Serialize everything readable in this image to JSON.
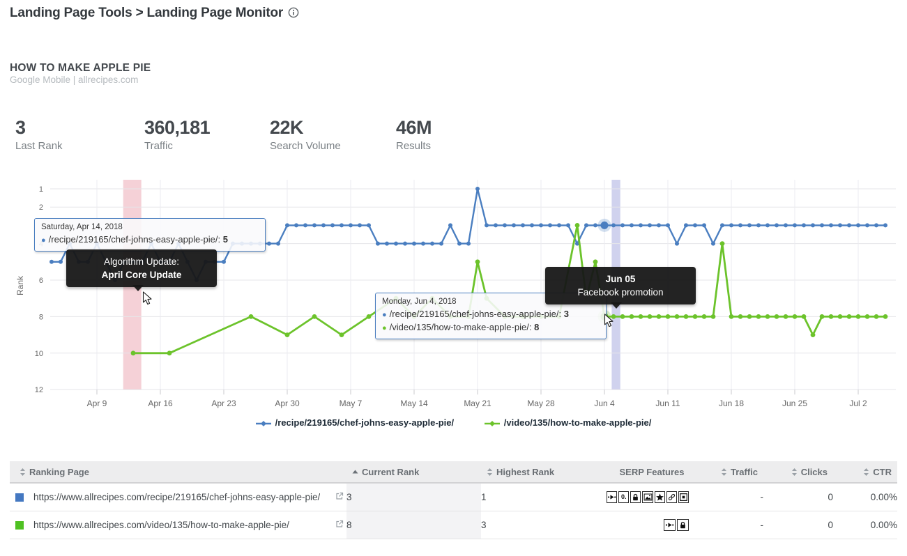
{
  "header": {
    "breadcrumb": "Landing Page Tools > Landing Page Monitor",
    "info_icon": "info-icon"
  },
  "keyword": {
    "title": "HOW TO MAKE APPLE PIE",
    "subtitle": "Google Mobile | allrecipes.com"
  },
  "stats": [
    {
      "value": "3",
      "label": "Last Rank"
    },
    {
      "value": "360,181",
      "label": "Traffic"
    },
    {
      "value": "22K",
      "label": "Search Volume"
    },
    {
      "value": "46M",
      "label": "Results"
    }
  ],
  "colors": {
    "recipe_blue": "#4a7ec0",
    "video_green": "#6cc32b",
    "band_pink": "rgba(226,115,134,0.33)",
    "band_purple": "rgba(110,116,202,0.32)",
    "grid": "#e6e6e9",
    "axis_text": "#666666"
  },
  "chart_data": {
    "type": "line",
    "title": "",
    "xlabel": "",
    "ylabel": "Rank",
    "y_inverted": true,
    "ylim": [
      1,
      12
    ],
    "y_ticks": [
      1,
      2,
      4,
      6,
      8,
      10,
      12
    ],
    "x_start_date": "Apr 4, 2018",
    "x_ticks": [
      {
        "day": 5,
        "label": "Apr 9"
      },
      {
        "day": 12,
        "label": "Apr 16"
      },
      {
        "day": 19,
        "label": "Apr 23"
      },
      {
        "day": 26,
        "label": "Apr 30"
      },
      {
        "day": 33,
        "label": "May 7"
      },
      {
        "day": 40,
        "label": "May 14"
      },
      {
        "day": 47,
        "label": "May 21"
      },
      {
        "day": 54,
        "label": "May 28"
      },
      {
        "day": 61,
        "label": "Jun 4"
      },
      {
        "day": 68,
        "label": "Jun 11"
      },
      {
        "day": 75,
        "label": "Jun 18"
      },
      {
        "day": 82,
        "label": "Jun 25"
      },
      {
        "day": 89,
        "label": "Jul 2"
      }
    ],
    "series": [
      {
        "name": "/recipe/219165/chef-johns-easy-apple-pie/",
        "color": "#4a7ec0",
        "points": [
          [
            0,
            5
          ],
          [
            1,
            5
          ],
          [
            2,
            4
          ],
          [
            3,
            5
          ],
          [
            4,
            5
          ],
          [
            5,
            4
          ],
          [
            6,
            5
          ],
          [
            7,
            6
          ],
          [
            8,
            5
          ],
          [
            9,
            5
          ],
          [
            10,
            5
          ],
          [
            11,
            4
          ],
          [
            12,
            5
          ],
          [
            13,
            5
          ],
          [
            14,
            4
          ],
          [
            15,
            5
          ],
          [
            16,
            6
          ],
          [
            17,
            5
          ],
          [
            18,
            5
          ],
          [
            19,
            5
          ],
          [
            20,
            4
          ],
          [
            21,
            4
          ],
          [
            22,
            4
          ],
          [
            23,
            4
          ],
          [
            24,
            4
          ],
          [
            25,
            4
          ],
          [
            26,
            3
          ],
          [
            27,
            3
          ],
          [
            28,
            3
          ],
          [
            29,
            3
          ],
          [
            30,
            3
          ],
          [
            31,
            3
          ],
          [
            32,
            3
          ],
          [
            33,
            3
          ],
          [
            34,
            3
          ],
          [
            35,
            3
          ],
          [
            36,
            4
          ],
          [
            37,
            4
          ],
          [
            38,
            4
          ],
          [
            39,
            4
          ],
          [
            40,
            4
          ],
          [
            41,
            4
          ],
          [
            42,
            4
          ],
          [
            43,
            4
          ],
          [
            44,
            3
          ],
          [
            45,
            4
          ],
          [
            46,
            4
          ],
          [
            47,
            1
          ],
          [
            48,
            3
          ],
          [
            49,
            3
          ],
          [
            50,
            3
          ],
          [
            51,
            3
          ],
          [
            52,
            3
          ],
          [
            53,
            3
          ],
          [
            54,
            3
          ],
          [
            55,
            3
          ],
          [
            56,
            3
          ],
          [
            57,
            3
          ],
          [
            58,
            4
          ],
          [
            59,
            3
          ],
          [
            60,
            3
          ],
          [
            61,
            3
          ],
          [
            62,
            3
          ],
          [
            63,
            3
          ],
          [
            64,
            3
          ],
          [
            65,
            3
          ],
          [
            66,
            3
          ],
          [
            67,
            3
          ],
          [
            68,
            3
          ],
          [
            69,
            4
          ],
          [
            70,
            3
          ],
          [
            71,
            3
          ],
          [
            72,
            3
          ],
          [
            73,
            4
          ],
          [
            74,
            3
          ],
          [
            75,
            3
          ],
          [
            76,
            3
          ],
          [
            77,
            3
          ],
          [
            78,
            3
          ],
          [
            79,
            3
          ],
          [
            80,
            3
          ],
          [
            81,
            3
          ],
          [
            82,
            3
          ],
          [
            83,
            3
          ],
          [
            84,
            3
          ],
          [
            85,
            3
          ],
          [
            86,
            3
          ],
          [
            87,
            3
          ],
          [
            88,
            3
          ],
          [
            89,
            3
          ],
          [
            90,
            3
          ],
          [
            91,
            3
          ],
          [
            92,
            3
          ]
        ]
      },
      {
        "name": "/video/135/how-to-make-apple-pie/",
        "color": "#6cc32b",
        "points": [
          [
            9,
            10
          ],
          [
            13,
            10
          ],
          [
            22,
            8
          ],
          [
            26,
            9
          ],
          [
            29,
            8
          ],
          [
            32,
            9
          ],
          [
            35,
            8
          ],
          [
            38,
            7
          ],
          [
            40,
            8
          ],
          [
            42,
            7
          ],
          [
            44,
            8
          ],
          [
            46,
            8
          ],
          [
            47,
            5
          ],
          [
            48,
            7
          ],
          [
            50,
            8
          ],
          [
            52,
            8
          ],
          [
            54,
            8
          ],
          [
            56,
            8
          ],
          [
            58,
            3
          ],
          [
            59,
            7
          ],
          [
            60,
            5
          ],
          [
            61,
            8
          ],
          [
            62,
            8
          ],
          [
            63,
            8
          ],
          [
            64,
            8
          ],
          [
            65,
            8
          ],
          [
            66,
            8
          ],
          [
            67,
            8
          ],
          [
            68,
            8
          ],
          [
            69,
            8
          ],
          [
            70,
            8
          ],
          [
            71,
            8
          ],
          [
            72,
            8
          ],
          [
            73,
            8
          ],
          [
            74,
            4
          ],
          [
            75,
            8
          ],
          [
            76,
            8
          ],
          [
            77,
            8
          ],
          [
            78,
            8
          ],
          [
            79,
            8
          ],
          [
            80,
            8
          ],
          [
            81,
            8
          ],
          [
            82,
            8
          ],
          [
            83,
            8
          ],
          [
            84,
            9
          ],
          [
            85,
            8
          ],
          [
            86,
            8
          ],
          [
            87,
            8
          ],
          [
            88,
            8
          ],
          [
            89,
            8
          ],
          [
            90,
            8
          ],
          [
            91,
            8
          ],
          [
            92,
            8
          ]
        ]
      }
    ],
    "bands": [
      {
        "name": "april-core-update",
        "label": "April Core Update",
        "from_day": 7.9,
        "to_day": 9.9,
        "color": "rgba(226,115,134,0.33)"
      },
      {
        "name": "facebook-promotion",
        "label": "Facebook promotion",
        "from_day": 61.8,
        "to_day": 62.75,
        "color": "rgba(110,116,202,0.32)"
      }
    ],
    "hover_day": 61,
    "legend_position": "bottom"
  },
  "tooltips": {
    "sep": ": ",
    "hover1": {
      "date": "Saturday, Apr 14, 2018",
      "row_label": "/recipe/219165/chef-johns-easy-apple-pie/",
      "row_value": "5"
    },
    "hover2": {
      "date": "Monday, Jun 4, 2018",
      "rows": [
        {
          "label": "/recipe/219165/chef-johns-easy-apple-pie/",
          "value": "3"
        },
        {
          "label": "/video/135/how-to-make-apple-pie/",
          "value": "8"
        }
      ]
    },
    "annotation1": {
      "line1": "Algorithm Update:",
      "line2": "April Core Update"
    },
    "annotation2": {
      "line1": "Jun 05",
      "line2": "Facebook promotion"
    }
  },
  "table": {
    "columns": [
      {
        "label": "Ranking Page",
        "sort": "both",
        "align": "left"
      },
      {
        "label": "Current Rank",
        "sort": "asc",
        "align": "left2"
      },
      {
        "label": "Highest Rank",
        "sort": "both",
        "align": "left2"
      },
      {
        "label": "SERP Features",
        "sort": "none",
        "align": "center"
      },
      {
        "label": "Traffic",
        "sort": "both",
        "align": "right"
      },
      {
        "label": "Clicks",
        "sort": "both",
        "align": "right"
      },
      {
        "label": "CTR",
        "sort": "both",
        "align": "right"
      }
    ],
    "rows": [
      {
        "color": "#4478c1",
        "url": "https://www.allrecipes.com/recipe/219165/chef-johns-easy-apple-pie/",
        "current_rank": "3",
        "highest_rank": "1",
        "serp_features": [
          "video-icon",
          "zero-icon",
          "lock-icon",
          "image-icon",
          "star-icon",
          "link-icon",
          "frame-icon"
        ],
        "traffic": "-",
        "clicks": "0",
        "ctr": "0.00%"
      },
      {
        "color": "#4fc122",
        "url": "https://www.allrecipes.com/video/135/how-to-make-apple-pie/",
        "current_rank": "8",
        "highest_rank": "3",
        "serp_features": [
          "video-icon",
          "lock-icon"
        ],
        "traffic": "-",
        "clicks": "0",
        "ctr": "0.00%"
      }
    ]
  }
}
